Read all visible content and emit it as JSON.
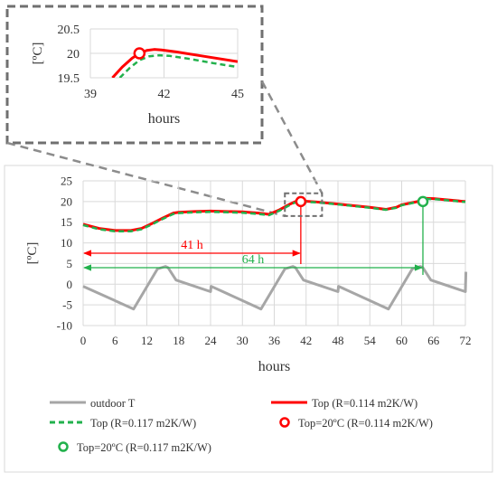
{
  "colors": {
    "outdoor": "#a6a6a6",
    "top_0114": "#ff0000",
    "top_0117": "#22b14c",
    "arrow_41": "#ff0000",
    "arrow_64": "#22b14c",
    "grid": "#d9d9d9",
    "zoom_border": "#707070"
  },
  "chart_data": [
    {
      "type": "line",
      "xlabel": "hours",
      "ylabel": "[ºC]",
      "xlim": [
        0,
        72
      ],
      "ylim": [
        -10,
        25
      ],
      "xticks": [
        "0",
        "6",
        "12",
        "18",
        "24",
        "30",
        "36",
        "42",
        "48",
        "54",
        "60",
        "66",
        "72"
      ],
      "yticks": [
        "25",
        "20",
        "15",
        "10",
        "5",
        "0",
        "-5",
        "-10"
      ],
      "grid": true,
      "legend_position": "bottom",
      "series": [
        {
          "name": "outdoor T",
          "style": "solid",
          "x": [
            0,
            9.5,
            14,
            15.5,
            16,
            17.5,
            24,
            24.1,
            33.5,
            38,
            39.5,
            40,
            41.5,
            48,
            48.1,
            57.5,
            62,
            63.5,
            64,
            65.5,
            72,
            72.1
          ],
          "y": [
            -0.5,
            -6,
            3.7,
            4.3,
            4,
            1,
            -1.8,
            -0.5,
            -6,
            3.7,
            4.3,
            4,
            1,
            -1.8,
            -0.5,
            -6,
            3.7,
            4.3,
            4,
            1,
            -1.8,
            3
          ]
        },
        {
          "name": "Top (R=0.114 m2K/W)",
          "style": "solid",
          "x": [
            0,
            3,
            6,
            9,
            11,
            13,
            15,
            17,
            18,
            21,
            24,
            30,
            33,
            35,
            37,
            39,
            40,
            41,
            41.5,
            44,
            48,
            54,
            57,
            59,
            60,
            63,
            64,
            66,
            72
          ],
          "y": [
            14.5,
            13.5,
            13,
            13,
            13.5,
            14.7,
            16,
            17.2,
            17.4,
            17.6,
            17.7,
            17.5,
            17.2,
            16.9,
            18,
            19.4,
            20,
            20.05,
            20.1,
            19.9,
            19.4,
            18.6,
            18.1,
            18.6,
            19.2,
            20,
            20.8,
            20.7,
            20
          ]
        },
        {
          "name": "Top (R=0.117 m2K/W)",
          "style": "dashed",
          "x": [
            0,
            3,
            6,
            9,
            11,
            13,
            15,
            17,
            18,
            21,
            24,
            30,
            33,
            35,
            37,
            39,
            40,
            41,
            41.5,
            44,
            48,
            54,
            57,
            59,
            60,
            63,
            64,
            66,
            72
          ],
          "y": [
            14.3,
            13.3,
            12.8,
            12.8,
            13.3,
            14.5,
            15.8,
            17,
            17.2,
            17.4,
            17.5,
            17.3,
            17,
            16.7,
            17.8,
            19.2,
            19.8,
            19.9,
            19.95,
            19.8,
            19.3,
            18.5,
            18,
            18.5,
            19.1,
            19.9,
            20.6,
            20.6,
            19.9
          ]
        },
        {
          "name": "Top=20ºC (R=0.114 m2K/W)",
          "marker": "circle",
          "x": [
            41
          ],
          "y": [
            20
          ]
        },
        {
          "name": "Top=20ºC (R=0.117 m2K/W)",
          "marker": "circle",
          "x": [
            64
          ],
          "y": [
            20
          ]
        }
      ],
      "annotations": [
        {
          "text": "41 h",
          "x_from": 0,
          "x_to": 41,
          "y": 7.5
        },
        {
          "text": "64 h",
          "x_from": 0,
          "x_to": 64,
          "y": 4
        }
      ],
      "zoom_region": {
        "x": [
          38,
          45
        ],
        "y": [
          16.5,
          22
        ]
      }
    },
    {
      "type": "line",
      "xlabel": "hours",
      "ylabel": "[ºC]",
      "xlim": [
        39,
        45
      ],
      "ylim": [
        19.5,
        20.5
      ],
      "xticks": [
        "39",
        "42",
        "45"
      ],
      "yticks": [
        "20.5",
        "20",
        "19.5"
      ],
      "grid": true,
      "series": [
        {
          "name": "Top (R=0.114 m2K/W)",
          "style": "solid",
          "x": [
            39.9,
            40.3,
            40.7,
            41,
            41.3,
            41.6,
            41.9,
            42.5,
            43.5,
            45
          ],
          "y": [
            19.5,
            19.72,
            19.9,
            20,
            20.06,
            20.08,
            20.07,
            20.03,
            19.95,
            19.83
          ]
        },
        {
          "name": "Top (R=0.117 m2K/W)",
          "style": "dashed",
          "x": [
            40.2,
            40.6,
            41,
            41.4,
            41.8,
            42.2,
            43,
            44,
            45
          ],
          "y": [
            19.5,
            19.7,
            19.86,
            19.94,
            19.96,
            19.95,
            19.89,
            19.8,
            19.72
          ]
        },
        {
          "name": "Top=20ºC (R=0.114 m2K/W)",
          "marker": "circle",
          "x": [
            41
          ],
          "y": [
            20
          ]
        }
      ]
    }
  ]
}
